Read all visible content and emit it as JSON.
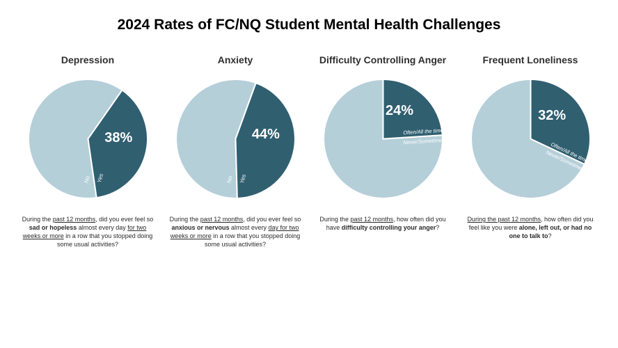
{
  "title": "2024 Rates of FC/NQ Student Mental Health Challenges",
  "colors": {
    "dark": "#305f70",
    "light": "#b5cfd9",
    "stroke": "#ffffff",
    "text": "#000000"
  },
  "charts": [
    {
      "title": "Depression",
      "type": "pie",
      "percent": 38,
      "percent_label": "38%",
      "slice1_label": "Yes",
      "slice2_label": "No",
      "label_style": "yesno",
      "start_angle_deg": -55,
      "caption_html": "During the <span class='u'>past 12 months</span>, did you ever feel so <span class='b'>sad or hopeless</span> almost every day <span class='u'>for two weeks or more</span> in a row that you stopped doing some usual activities?"
    },
    {
      "title": "Anxiety",
      "type": "pie",
      "percent": 44,
      "percent_label": "44%",
      "slice1_label": "Yes",
      "slice2_label": "No",
      "label_style": "yesno",
      "start_angle_deg": -70,
      "caption_html": "During the <span class='u'>past 12 months</span>, did you ever feel so <span class='b'>anxious or nervous</span> almost every <span class='u'>day for two weeks or more</span> in a row that you stopped doing some usual activities?"
    },
    {
      "title": "Difficulty Controlling Anger",
      "type": "pie",
      "percent": 24,
      "percent_label": "24%",
      "slice1_label": "Often/All the time",
      "slice2_label": "Never/Sometimes",
      "label_style": "freq",
      "start_angle_deg": -90,
      "caption_html": "During the <span class='u'>past 12 months</span>, how often did you have <span class='b'>difficulty controlling your anger</span>?"
    },
    {
      "title": "Frequent Loneliness",
      "type": "pie",
      "percent": 32,
      "percent_label": "32%",
      "slice1_label": "Often/All the time",
      "slice2_label": "Never/Sometimes",
      "label_style": "freq",
      "start_angle_deg": -90,
      "caption_html": "<span class='u'>During the past 12 months</span>, how often did you feel like you were <span class='b'>alone, left out, or had no one to talk to</span>?"
    }
  ],
  "pie_style": {
    "radius": 85,
    "stroke_width": 2,
    "percent_fontsize": 20,
    "slice_label_fontsize": 8
  }
}
